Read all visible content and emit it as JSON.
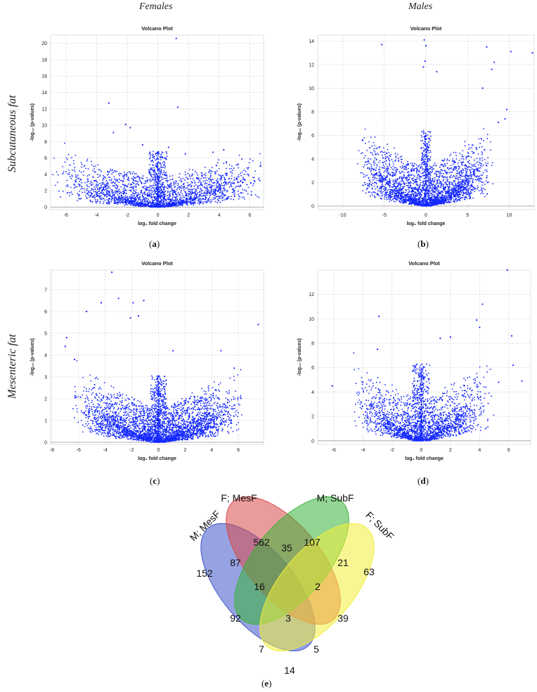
{
  "headers": {
    "females": "Females",
    "males": "Males"
  },
  "row_labels": {
    "sub": "Subcutaneous fat",
    "mes": "Mesenteric fat"
  },
  "chart_data": [
    {
      "id": "a",
      "type": "scatter",
      "title": "Volcano Plot",
      "xlabel": "log₂ fold change",
      "ylabel": "-log₁₀ (p-values)",
      "xlim": [
        -7,
        6.9
      ],
      "ylim": [
        -0.3,
        21
      ],
      "xticks": [
        -6,
        -4,
        -2,
        0,
        2,
        4,
        6
      ],
      "yticks": [
        0,
        2,
        4,
        6,
        8,
        10,
        12,
        14,
        16,
        18,
        20
      ],
      "model": {
        "spread_x": 7.0,
        "max_y": 8.0,
        "n": 2600,
        "seed": 11,
        "power": 1.7
      },
      "outliers": [
        [
          1.2,
          20.6
        ],
        [
          1.3,
          12.2
        ],
        [
          -3.2,
          12.7
        ],
        [
          -2.9,
          9.1
        ],
        [
          -2.1,
          10.1
        ],
        [
          -1.8,
          9.7
        ],
        [
          4.3,
          7.0
        ],
        [
          0.7,
          7.3
        ],
        [
          3.6,
          6.7
        ],
        [
          -6.2,
          4.1
        ],
        [
          6.7,
          5.0
        ],
        [
          -1.0,
          7.6
        ],
        [
          1.8,
          6.5
        ],
        [
          6.3,
          3.2
        ]
      ],
      "panel_label": "a"
    },
    {
      "id": "b",
      "type": "scatter",
      "title": "Volcano Plot",
      "xlabel": "log₂ fold change",
      "ylabel": "-log₁₀ (p-values)",
      "xlim": [
        -13,
        13
      ],
      "ylim": [
        -0.3,
        14.5
      ],
      "xticks": [
        -10,
        -5,
        0,
        5,
        10
      ],
      "yticks": [
        0,
        2,
        4,
        6,
        8,
        10,
        12,
        14
      ],
      "model": {
        "spread_x": 8.5,
        "max_y": 7.5,
        "n": 2900,
        "seed": 29,
        "power": 1.4
      },
      "outliers": [
        [
          -0.2,
          14.1
        ],
        [
          -5.3,
          13.7
        ],
        [
          0.0,
          13.6
        ],
        [
          7.3,
          13.5
        ],
        [
          10.2,
          13.1
        ],
        [
          12.8,
          13.0
        ],
        [
          8.2,
          12.2
        ],
        [
          7.9,
          11.6
        ],
        [
          9.7,
          8.2
        ],
        [
          9.5,
          7.4
        ],
        [
          8.7,
          7.1
        ],
        [
          6.8,
          10.0
        ],
        [
          1.3,
          11.4
        ],
        [
          -0.1,
          12.3
        ],
        [
          -7.6,
          5.6
        ],
        [
          -5.6,
          5.0
        ],
        [
          -0.3,
          11.8
        ]
      ],
      "panel_label": "b"
    },
    {
      "id": "c",
      "type": "scatter",
      "title": "Volcano Plot",
      "xlabel": "log₂ fold change",
      "ylabel": "-log₁₀ (p-values)",
      "xlim": [
        -8.1,
        7.9
      ],
      "ylim": [
        -0.1,
        7.9
      ],
      "xticks": [
        -8,
        -6,
        -4,
        -2,
        0,
        2,
        4,
        6
      ],
      "yticks": [
        0,
        1,
        2,
        3,
        4,
        5,
        6,
        7
      ],
      "model": {
        "spread_x": 6.5,
        "max_y": 3.6,
        "n": 3600,
        "seed": 47,
        "power": 1.5
      },
      "outliers": [
        [
          -3.5,
          7.8
        ],
        [
          -3.0,
          6.6
        ],
        [
          -4.3,
          6.4
        ],
        [
          -1.9,
          6.4
        ],
        [
          -1.1,
          6.5
        ],
        [
          -5.4,
          6.0
        ],
        [
          -2.1,
          5.7
        ],
        [
          -6.9,
          4.8
        ],
        [
          -7.0,
          4.4
        ],
        [
          -6.3,
          3.8
        ],
        [
          7.5,
          5.4
        ],
        [
          -1.5,
          5.8
        ],
        [
          1.1,
          4.2
        ],
        [
          4.7,
          4.2
        ],
        [
          5.7,
          3.4
        ]
      ],
      "panel_label": "c"
    },
    {
      "id": "d",
      "type": "scatter",
      "title": "Volcano Plot",
      "xlabel": "log₂ fold change",
      "ylabel": "-log₁₀ (p-values)",
      "xlim": [
        -7.1,
        7.5
      ],
      "ylim": [
        -0.3,
        14
      ],
      "xticks": [
        -6,
        -4,
        -2,
        0,
        2,
        4,
        6
      ],
      "yticks": [
        0,
        2,
        4,
        6,
        8,
        10,
        12
      ],
      "model": {
        "spread_x": 5.0,
        "max_y": 7.4,
        "n": 2400,
        "seed": 63,
        "power": 1.6
      },
      "outliers": [
        [
          5.9,
          14.0
        ],
        [
          4.2,
          11.2
        ],
        [
          -2.9,
          10.2
        ],
        [
          3.8,
          9.9
        ],
        [
          4.0,
          9.3
        ],
        [
          6.2,
          8.6
        ],
        [
          1.3,
          8.4
        ],
        [
          -6.1,
          4.5
        ],
        [
          -4.0,
          4.8
        ],
        [
          5.3,
          4.8
        ],
        [
          6.9,
          4.9
        ],
        [
          6.3,
          6.2
        ],
        [
          -3.0,
          7.5
        ],
        [
          2.0,
          8.5
        ]
      ],
      "panel_label": "d"
    }
  ],
  "venn": {
    "labels": {
      "mmesf": "M; MesF",
      "fmesf": "F; MesF",
      "msubf": "M; SubF",
      "fsubf": "F; SubF"
    },
    "counts": {
      "only_mmesf": "152",
      "only_fmesf": "562",
      "only_msubf": "107",
      "only_fsubf": "63",
      "mmesf_fmesf": "87",
      "fmesf_msubf": "35",
      "msubf_fsubf": "21",
      "mmesf_fmesf_msubf": "16",
      "fmesf_msubf_fsubf": "2",
      "mmesf_msubf": "92",
      "fmesf_fsubf": "39",
      "all": "3",
      "mmesf_msubf_fsubf": "7",
      "mmesf_fmesf_fsubf": "5",
      "mmesf_fsubf": "14"
    },
    "colors": {
      "mmesf": "#3f55c8",
      "fmesf": "#d84b4b",
      "msubf": "#3bb33b",
      "fsubf": "#f2ee3a"
    },
    "panel_label": "e"
  }
}
